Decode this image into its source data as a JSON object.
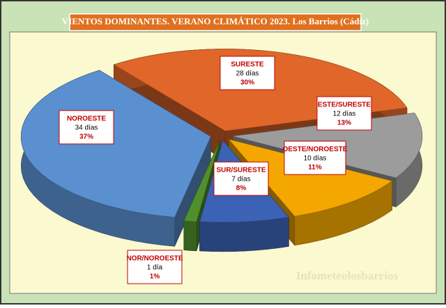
{
  "chart_data": {
    "type": "pie3d",
    "title": "VIENTOS DOMINANTES. VERANO CLIMÁTICO 2023. Los Barrios (Cádiz)",
    "watermark": "Infometeolosbarrios",
    "categories": [
      "SURESTE",
      "ESTE/SURESTE",
      "OESTE/NOROESTE",
      "SUR/SURESTE",
      "NOR/NOROESTE",
      "NOROESTE"
    ],
    "values": [
      28,
      12,
      10,
      7,
      1,
      34
    ],
    "value_labels": [
      "28 días",
      "12 días",
      "10 días",
      "7 días",
      "1 día",
      "34 días"
    ],
    "percentages": [
      30,
      13,
      11,
      8,
      1,
      37
    ],
    "percentage_labels": [
      "30%",
      "13%",
      "11%",
      "8%",
      "1%",
      "37%"
    ],
    "colors": [
      "#e0662a",
      "#9c9c9c",
      "#f4a700",
      "#3b62b4",
      "#4f8f2c",
      "#5a90cf"
    ]
  }
}
